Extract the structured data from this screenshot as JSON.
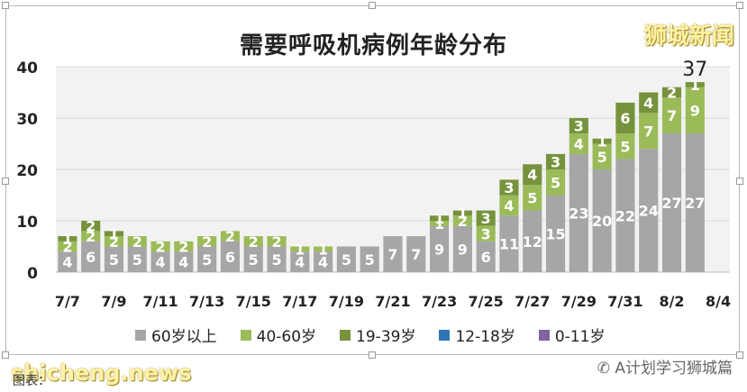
{
  "chart_data": {
    "type": "bar",
    "stacked": true,
    "title": "需要呼吸机病例年龄分布",
    "categories": [
      "7/7",
      "7/8",
      "7/9",
      "7/10",
      "7/11",
      "7/12",
      "7/13",
      "7/14",
      "7/15",
      "7/16",
      "7/17",
      "7/18",
      "7/19",
      "7/20",
      "7/21",
      "7/22",
      "7/23",
      "7/24",
      "7/25",
      "7/26",
      "7/27",
      "7/28",
      "7/29",
      "7/30",
      "7/31",
      "8/1",
      "8/2",
      "8/3",
      "8/4"
    ],
    "x_tick_labels": [
      "7/7",
      "7/9",
      "7/11",
      "7/13",
      "7/15",
      "7/17",
      "7/19",
      "7/21",
      "7/23",
      "7/25",
      "7/27",
      "7/29",
      "7/31",
      "8/2",
      "8/4"
    ],
    "ylim": [
      0,
      40
    ],
    "yticks": [
      0,
      10,
      20,
      30,
      40
    ],
    "grid": true,
    "legend_position": "bottom",
    "series": [
      {
        "name": "60岁以上",
        "color": "#a6a6a6",
        "values": [
          4,
          6,
          5,
          5,
          4,
          4,
          5,
          6,
          5,
          5,
          4,
          4,
          5,
          5,
          7,
          7,
          9,
          9,
          6,
          11,
          12,
          15,
          23,
          20,
          22,
          24,
          27,
          27,
          null
        ]
      },
      {
        "name": "40-60岁",
        "color": "#9bbb59",
        "values": [
          2,
          2,
          2,
          2,
          2,
          2,
          2,
          2,
          2,
          2,
          1,
          1,
          0,
          0,
          0,
          0,
          1,
          2,
          3,
          4,
          5,
          5,
          4,
          5,
          5,
          7,
          7,
          9,
          null
        ]
      },
      {
        "name": "19-39岁",
        "color": "#76923c",
        "values": [
          1,
          2,
          1,
          0,
          0,
          0,
          0,
          0,
          0,
          0,
          0,
          0,
          0,
          0,
          0,
          0,
          1,
          1,
          3,
          3,
          4,
          3,
          3,
          1,
          6,
          4,
          2,
          1,
          null
        ]
      },
      {
        "name": "12-18岁",
        "color": "#2e75b6",
        "values": [
          0,
          0,
          0,
          0,
          0,
          0,
          0,
          0,
          0,
          0,
          0,
          0,
          0,
          0,
          0,
          0,
          0,
          0,
          0,
          0,
          0,
          0,
          0,
          0,
          0,
          0,
          0,
          0,
          null
        ]
      },
      {
        "name": "0-11岁",
        "color": "#8064a2",
        "values": [
          0,
          0,
          0,
          0,
          0,
          0,
          0,
          0,
          0,
          0,
          0,
          0,
          0,
          0,
          0,
          0,
          0,
          0,
          0,
          0,
          0,
          0,
          0,
          0,
          0,
          0,
          0,
          0,
          null
        ]
      }
    ],
    "annotations": [
      {
        "category": "8/3",
        "text": "37"
      }
    ]
  },
  "branding": {
    "top_right": "狮城新闻",
    "bottom_left": "shicheng.news",
    "wechat": "A计划学习狮城篇"
  },
  "source": "图表：",
  "colors": {
    "plot_background": "#f2f2f2",
    "grid": "#d9d9d9",
    "label_color_on_bar": "#ffffff"
  }
}
